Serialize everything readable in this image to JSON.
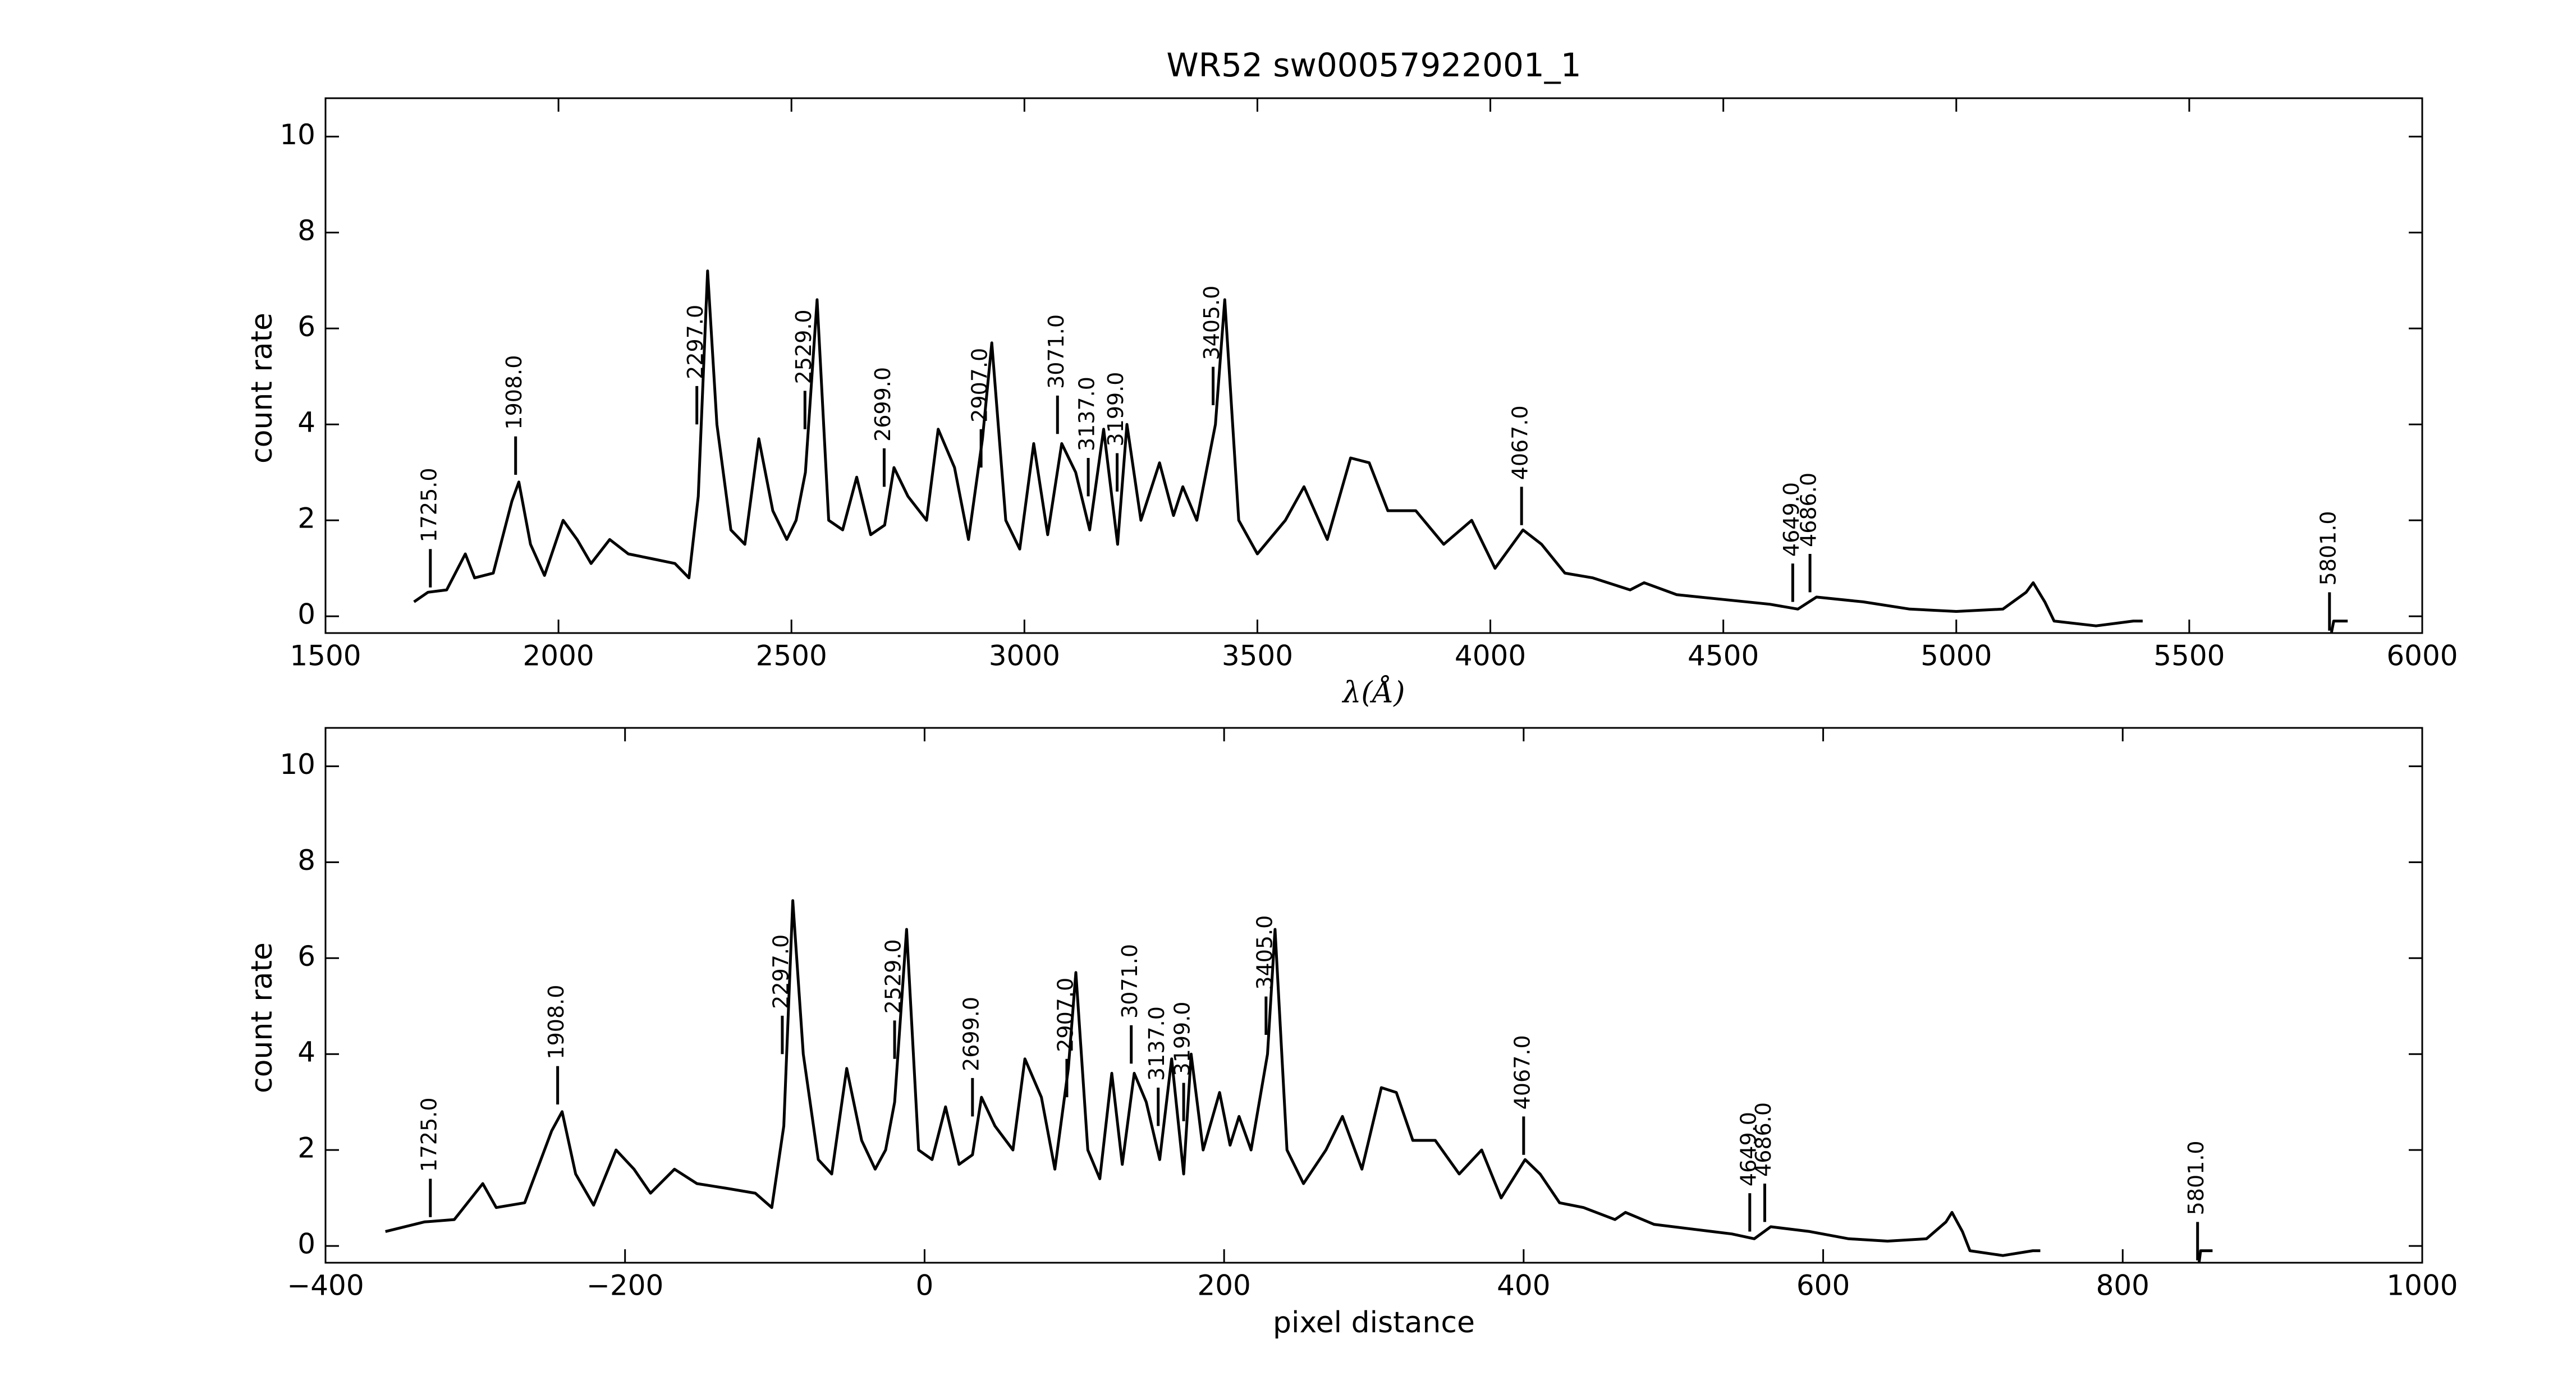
{
  "chart_data": [
    {
      "type": "line",
      "title": "WR52  sw00057922001_1",
      "xlabel": "λ(Å)",
      "ylabel": "count rate",
      "color": "#000000",
      "xlim": [
        1500,
        6000
      ],
      "xticks": [
        1500,
        2000,
        2500,
        3000,
        3500,
        4000,
        4500,
        5000,
        5500,
        6000
      ],
      "ylim": [
        -0.35,
        10.8
      ],
      "yticks": [
        0,
        2,
        4,
        6,
        8,
        10
      ],
      "x": [
        1690,
        1720,
        1760,
        1800,
        1820,
        1860,
        1900,
        1915,
        1940,
        1970,
        2010,
        2040,
        2070,
        2110,
        2150,
        2200,
        2250,
        2280,
        2300,
        2320,
        2340,
        2370,
        2400,
        2430,
        2460,
        2490,
        2510,
        2530,
        2555,
        2580,
        2610,
        2640,
        2670,
        2700,
        2720,
        2750,
        2790,
        2815,
        2850,
        2880,
        2910,
        2930,
        2960,
        2990,
        3020,
        3050,
        3080,
        3110,
        3140,
        3170,
        3200,
        3220,
        3250,
        3290,
        3320,
        3340,
        3370,
        3410,
        3430,
        3460,
        3500,
        3560,
        3600,
        3650,
        3700,
        3740,
        3780,
        3840,
        3900,
        3960,
        4010,
        4070,
        4110,
        4160,
        4220,
        4300,
        4330,
        4400,
        4500,
        4600,
        4660,
        4700,
        4800,
        4900,
        5000,
        5100,
        5150,
        5165,
        5190,
        5210,
        5300,
        5380,
        5400,
        5600,
        5805,
        5810,
        5840
      ],
      "values": [
        0.3,
        0.5,
        0.55,
        1.3,
        0.8,
        0.9,
        2.4,
        2.8,
        1.5,
        0.85,
        2.0,
        1.6,
        1.1,
        1.6,
        1.3,
        1.2,
        1.1,
        0.8,
        2.5,
        7.2,
        4.0,
        1.8,
        1.5,
        3.7,
        2.2,
        1.6,
        2.0,
        3.0,
        6.6,
        2.0,
        1.8,
        2.9,
        1.7,
        1.9,
        3.1,
        2.5,
        2.0,
        3.9,
        3.1,
        1.6,
        3.7,
        5.7,
        2.0,
        1.4,
        3.6,
        1.7,
        3.6,
        3.0,
        1.8,
        3.9,
        1.5,
        4.0,
        2.0,
        3.2,
        2.1,
        2.7,
        2.0,
        4.0,
        6.6,
        2.0,
        1.3,
        2.0,
        2.7,
        1.6,
        3.3,
        3.2,
        2.2,
        2.2,
        1.5,
        2.0,
        1.0,
        1.8,
        1.5,
        0.9,
        0.8,
        0.55,
        0.7,
        0.45,
        0.35,
        0.25,
        0.15,
        0.4,
        0.3,
        0.15,
        0.1,
        0.15,
        0.5,
        0.7,
        0.3,
        -0.1,
        -0.2,
        -0.1,
        -0.1,
        null,
        -0.35,
        -0.1,
        -0.1
      ],
      "annotations": [
        {
          "text": "1725.0",
          "x": 1725,
          "y": 0.6
        },
        {
          "text": "1908.0",
          "x": 1908,
          "y": 2.95
        },
        {
          "text": "2297.0",
          "x": 2297,
          "y": 4.0
        },
        {
          "text": "2529.0",
          "x": 2529,
          "y": 3.9
        },
        {
          "text": "2699.0",
          "x": 2699,
          "y": 2.7
        },
        {
          "text": "2907.0",
          "x": 2907,
          "y": 3.1
        },
        {
          "text": "3071.0",
          "x": 3071,
          "y": 3.8
        },
        {
          "text": "3137.0",
          "x": 3137,
          "y": 2.5
        },
        {
          "text": "3199.0",
          "x": 3199,
          "y": 2.6
        },
        {
          "text": "3405.0",
          "x": 3405,
          "y": 4.4
        },
        {
          "text": "4067.0",
          "x": 4067,
          "y": 1.9
        },
        {
          "text": "4649.0",
          "x": 4649,
          "y": 0.3
        },
        {
          "text": "4686.0",
          "x": 4686,
          "y": 0.5
        },
        {
          "text": "5801.0",
          "x": 5801,
          "y": -0.3
        }
      ]
    },
    {
      "type": "line",
      "xlabel": "pixel distance",
      "ylabel": "count rate",
      "color": "#000000",
      "xlim": [
        -400,
        1000
      ],
      "xticks": [
        {
          "value": -400,
          "label": "−400"
        },
        {
          "value": -200,
          "label": "−200"
        },
        0,
        200,
        400,
        600,
        800,
        1000
      ],
      "ylim": [
        -0.35,
        10.8
      ],
      "yticks": [
        0,
        2,
        4,
        6,
        8,
        10
      ],
      "x": [
        -360,
        -334,
        -314,
        -295,
        -286,
        -267,
        -249,
        -242,
        -233,
        -221,
        -206,
        -194,
        -183,
        -167,
        -152,
        -132,
        -113,
        -102,
        -94,
        -88,
        -81,
        -71,
        -62,
        -52,
        -42,
        -33,
        -26,
        -20,
        -12,
        -4,
        5,
        14,
        23,
        32,
        38,
        47,
        59,
        67,
        78,
        87,
        96,
        101,
        109,
        117,
        125,
        132,
        140,
        148,
        157,
        165,
        173,
        178,
        186,
        197,
        204,
        210,
        218,
        229,
        234,
        242,
        253,
        268,
        279,
        292,
        305,
        315,
        326,
        341,
        357,
        372,
        385,
        401,
        411,
        424,
        440,
        461,
        468,
        487,
        513,
        539,
        554,
        565,
        591,
        617,
        643,
        669,
        682,
        686,
        693,
        698,
        720,
        740,
        745,
        797,
        851,
        852,
        860
      ],
      "values": [
        0.3,
        0.5,
        0.55,
        1.3,
        0.8,
        0.9,
        2.4,
        2.8,
        1.5,
        0.85,
        2.0,
        1.6,
        1.1,
        1.6,
        1.3,
        1.2,
        1.1,
        0.8,
        2.5,
        7.2,
        4.0,
        1.8,
        1.5,
        3.7,
        2.2,
        1.6,
        2.0,
        3.0,
        6.6,
        2.0,
        1.8,
        2.9,
        1.7,
        1.9,
        3.1,
        2.5,
        2.0,
        3.9,
        3.1,
        1.6,
        3.7,
        5.7,
        2.0,
        1.4,
        3.6,
        1.7,
        3.6,
        3.0,
        1.8,
        3.9,
        1.5,
        4.0,
        2.0,
        3.2,
        2.1,
        2.7,
        2.0,
        4.0,
        6.6,
        2.0,
        1.3,
        2.0,
        2.7,
        1.6,
        3.3,
        3.2,
        2.2,
        2.2,
        1.5,
        2.0,
        1.0,
        1.8,
        1.5,
        0.9,
        0.8,
        0.55,
        0.7,
        0.45,
        0.35,
        0.25,
        0.15,
        0.4,
        0.3,
        0.15,
        0.1,
        0.15,
        0.5,
        0.7,
        0.3,
        -0.1,
        -0.2,
        -0.1,
        -0.1,
        null,
        -0.35,
        -0.1,
        -0.1
      ],
      "annotations": [
        {
          "text": "1725.0",
          "x": -330,
          "y": 0.6
        },
        {
          "text": "1908.0",
          "x": -245,
          "y": 2.95
        },
        {
          "text": "2297.0",
          "x": -95,
          "y": 4.0
        },
        {
          "text": "2529.0",
          "x": -20,
          "y": 3.9
        },
        {
          "text": "2699.0",
          "x": 32,
          "y": 2.7
        },
        {
          "text": "2907.0",
          "x": 95,
          "y": 3.1
        },
        {
          "text": "3071.0",
          "x": 138,
          "y": 3.8
        },
        {
          "text": "3137.0",
          "x": 156,
          "y": 2.5
        },
        {
          "text": "3199.0",
          "x": 173,
          "y": 2.6
        },
        {
          "text": "3405.0",
          "x": 228,
          "y": 4.4
        },
        {
          "text": "4067.0",
          "x": 400,
          "y": 1.9
        },
        {
          "text": "4649.0",
          "x": 551,
          "y": 0.3
        },
        {
          "text": "4686.0",
          "x": 561,
          "y": 0.5
        },
        {
          "text": "5801.0",
          "x": 850,
          "y": -0.3
        }
      ]
    }
  ]
}
